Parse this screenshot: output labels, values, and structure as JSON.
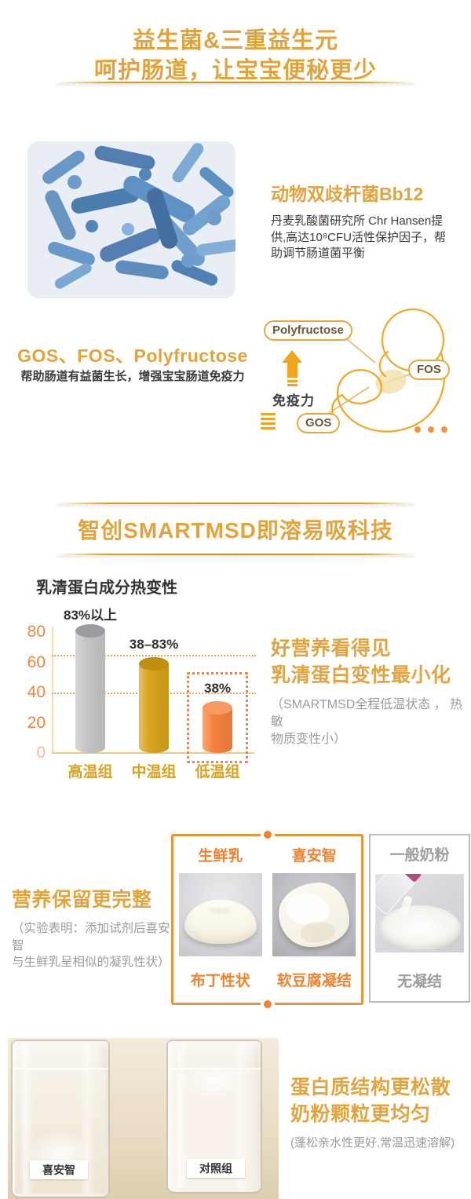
{
  "colors": {
    "gold_heading": "#e2a33c",
    "dark_text": "#3a3a3a",
    "gray_note": "#9b9b9b",
    "orange_label": "#f0832f",
    "golden_box_border": "#e8953a",
    "gray_box_border": "#bdbdbd",
    "bacteria_blue": "#5e92c4"
  },
  "icons": {
    "hamburger": "≡",
    "ellipsis": "•••",
    "up_arrow": "▲"
  },
  "header": {
    "title_line1": "益生菌&三重益生元",
    "title_line2": "呵护肠道，让宝宝便秘更少"
  },
  "probiotic": {
    "heading": "动物双歧杆菌Bb12",
    "body": "丹麦乳酸菌研究所 Chr Hansen提供,高达10⁸CFU活性保护因子，帮助调节肠道菌平衡"
  },
  "prebiotic": {
    "heading": "GOS、FOS、Polyfructose",
    "subheading": "帮助肠道有益菌生长，增强宝宝肠道免疫力",
    "label_polyfructose": "Polyfructose",
    "label_fos": "FOS",
    "label_gos": "GOS",
    "immunity": "免疫力"
  },
  "smartmsd": {
    "title": "智创SMARTMSD即溶易吸科技",
    "benefit_line1": "好营养看得见",
    "benefit_line2": "乳清蛋白变性最小化",
    "benefit_note_line1": "（SMARTMSD全程低温状态 ， 热敏",
    "benefit_note_line2": "物质变性小）"
  },
  "chart_data": {
    "type": "bar",
    "title": "乳清蛋白成分热变性",
    "categories": [
      "高温组",
      "中温组",
      "低温组"
    ],
    "values": [
      85,
      63,
      34
    ],
    "value_labels": [
      "83%以上",
      "38–83%",
      "38%"
    ],
    "unit": "%",
    "yticks": [
      0,
      20,
      40,
      60,
      80
    ],
    "ylim": [
      0,
      100
    ],
    "reference_lines": [
      65,
      40
    ],
    "grid": "dotted-horizontal",
    "legend": "none",
    "highlight_index": 2,
    "bar_colors": [
      "#c6c6c6",
      "#d8a41c",
      "#f5823f"
    ],
    "bar_cap_colors": [
      "#9c9ca0",
      "#c18f0e",
      "#f79a62"
    ],
    "axis_tick_color": "#f5823e",
    "category_color": "#d9a11e"
  },
  "retention": {
    "heading": "营养保留更完整",
    "note_line1": "（实验表明：添加试剂后喜安智",
    "note_line2": "与生鲜乳呈相似的凝乳性状）",
    "golden_box": {
      "col1_title": "生鲜乳",
      "col1_caption": "布丁性状",
      "col2_title": "喜安智",
      "col2_caption": "软豆腐凝结"
    },
    "gray_box": {
      "title": "一般奶粉",
      "caption": "无凝结"
    }
  },
  "solubility": {
    "heading_line1": "蛋白质结构更松散",
    "heading_line2": "奶粉颗粒更均匀",
    "note": "(蓬松亲水性更好,常温迅速溶解)",
    "glass_left_label": "喜安智",
    "glass_right_label": "对照组"
  }
}
